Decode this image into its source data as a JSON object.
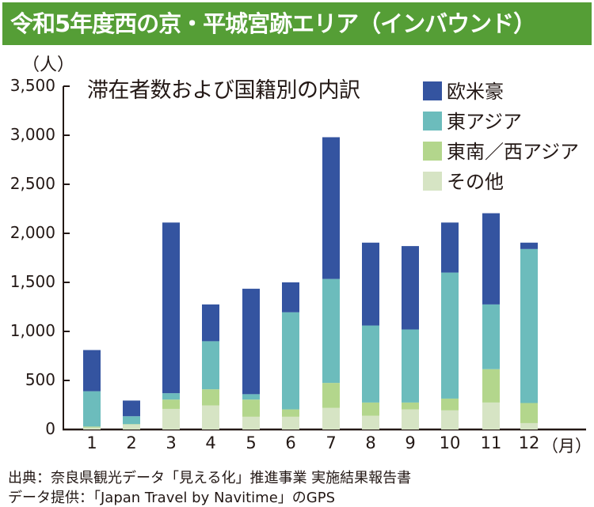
{
  "title": "令和5年度西の京・平城宮跡エリア（インバウンド）",
  "footer": {
    "source": "出典：奈良県観光データ「見える化」推進事業 実施結果報告書",
    "data_provider": "データ提供：「Japan Travel by Navitime」のGPS"
  },
  "chart_data": {
    "type": "bar",
    "stacked": true,
    "title": "滞在者数および国籍別の内訳",
    "ylabel": "（人）",
    "xlabel": "",
    "x_unit": "（月）",
    "ylim": [
      0,
      3500
    ],
    "yticks": [
      "0",
      "500",
      "1,000",
      "1,500",
      "2,000",
      "2,500",
      "3,000",
      "3,500"
    ],
    "ytick_values": [
      0,
      500,
      1000,
      1500,
      2000,
      2500,
      3000,
      3500
    ],
    "categories": [
      "1",
      "2",
      "3",
      "4",
      "5",
      "6",
      "7",
      "8",
      "9",
      "10",
      "11",
      "12"
    ],
    "legend_position": "top-right",
    "grid": false,
    "series": [
      {
        "name": "その他",
        "color": "#d6e4c4",
        "values": [
          20,
          50,
          210,
          245,
          130,
          130,
          220,
          140,
          205,
          195,
          275,
          65
        ]
      },
      {
        "name": "東南／西アジア",
        "color": "#b3d68c",
        "values": [
          10,
          5,
          95,
          165,
          175,
          75,
          255,
          135,
          70,
          120,
          340,
          205
        ]
      },
      {
        "name": "東アジア",
        "color": "#6cbcbc",
        "values": [
          360,
          80,
          65,
          490,
          55,
          990,
          1060,
          785,
          745,
          1285,
          660,
          1570
        ]
      },
      {
        "name": "欧米豪",
        "color": "#3454a0",
        "values": [
          420,
          160,
          1740,
          375,
          1075,
          305,
          1445,
          845,
          850,
          510,
          930,
          65
        ]
      }
    ]
  }
}
